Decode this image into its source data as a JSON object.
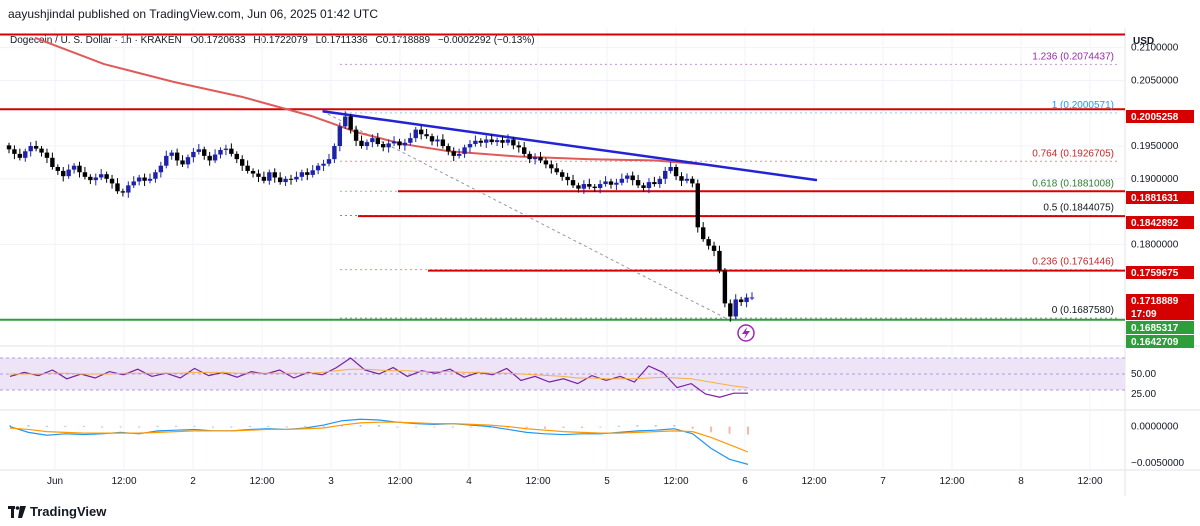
{
  "header": {
    "publisher_line": "aayushjindal published on TradingView.com, Jun 06, 2025 01:42 UTC"
  },
  "legend": {
    "symbol": "Dogecoin / U. S. Dollar · 1h · KRAKEN",
    "open_label": "O",
    "open": "0.1720633",
    "high_label": "H",
    "high": "0.1722079",
    "low_label": "L",
    "low": "0.1711336",
    "close_label": "C",
    "close": "0.1718889",
    "change": "−0.0002292 (−0.13%)"
  },
  "currency": "USD",
  "footer": {
    "brand": "TradingView"
  },
  "colors": {
    "up": "#1e22aa",
    "down": "#000000",
    "ma": "#e05a5a",
    "horizontal": "#d50000",
    "trend": "#2323d6",
    "support": "#2e9e3a",
    "fib_purple": "#9c27b0",
    "fib_blue": "#2196f3",
    "fib_red": "#c62828",
    "fib_green": "#2e7d32",
    "rsi": "#7b1fa2",
    "macd": "#2196f3",
    "signal": "#ff9800"
  },
  "chart_data": [
    {
      "type": "candlestick",
      "title": "Dogecoin / U. S. Dollar · 1h · KRAKEN",
      "ylabel": "USD",
      "ylim": [
        0.1645,
        0.213
      ],
      "x_ticks": [
        "Jun",
        "12:00",
        "2",
        "12:00",
        "3",
        "12:00",
        "4",
        "12:00",
        "5",
        "12:00",
        "6",
        "12:00",
        "7",
        "12:00",
        "8",
        "12:00"
      ],
      "y_ticks": [
        "0.2100000",
        "0.2050000",
        "0.1950000",
        "0.1900000",
        "0.1800000"
      ],
      "price_tags": [
        {
          "value": "0.2005258",
          "color": "#d50000"
        },
        {
          "value": "0.1881631",
          "color": "#d50000"
        },
        {
          "value": "0.1842892",
          "color": "#d50000"
        },
        {
          "value": "0.1759675",
          "color": "#d50000"
        },
        {
          "value": "0.1718889",
          "color": "#d50000"
        },
        {
          "value": "17:09",
          "color": "#d50000"
        },
        {
          "value": "0.1685317",
          "color": "#2e9e3a"
        },
        {
          "value": "0.1642709",
          "color": "#2e9e3a"
        }
      ],
      "fib_levels": [
        {
          "ratio": "1.236",
          "value": "0.2074437",
          "label": "1.236 (0.2074437)",
          "color": "#9c27b0"
        },
        {
          "ratio": "1",
          "value": "0.2000571",
          "label": "1 (0.2000571)",
          "color": "#2196f3"
        },
        {
          "ratio": "0.764",
          "value": "0.1926705",
          "label": "0.764 (0.1926705)",
          "color": "#c62828"
        },
        {
          "ratio": "0.618",
          "value": "0.1881008",
          "label": "0.618 (0.1881008)",
          "color": "#2e7d32"
        },
        {
          "ratio": "0.5",
          "value": "0.1844075",
          "label": "0.5 (0.1844075)",
          "color": "#131722"
        },
        {
          "ratio": "0.236",
          "value": "0.1761446",
          "label": "0.236 (0.1761446)",
          "color": "#c62828"
        },
        {
          "ratio": "0",
          "value": "0.1687580",
          "label": "0 (0.1687580)",
          "color": "#131722"
        }
      ],
      "horizontal_lines": [
        0.212,
        0.2006,
        0.1881,
        0.1843,
        0.176,
        0.1685
      ],
      "trendline": {
        "x": [
          "Jun 3 02:00",
          "Jun 6 16:00"
        ],
        "y": [
          0.2003,
          0.1898
        ]
      },
      "closes": [
        0.1945,
        0.1938,
        0.1932,
        0.1942,
        0.195,
        0.1946,
        0.194,
        0.1932,
        0.1918,
        0.1912,
        0.1904,
        0.1914,
        0.192,
        0.191,
        0.1903,
        0.1898,
        0.1902,
        0.1907,
        0.19,
        0.1893,
        0.1881,
        0.1879,
        0.189,
        0.1896,
        0.1902,
        0.1897,
        0.19,
        0.191,
        0.192,
        0.1935,
        0.194,
        0.1928,
        0.1922,
        0.1933,
        0.1941,
        0.1945,
        0.1935,
        0.1928,
        0.1937,
        0.1944,
        0.1946,
        0.1938,
        0.193,
        0.192,
        0.1912,
        0.1908,
        0.1903,
        0.1897,
        0.191,
        0.1902,
        0.1895,
        0.19,
        0.1899,
        0.1903,
        0.191,
        0.1906,
        0.1913,
        0.192,
        0.1923,
        0.193,
        0.195,
        0.198,
        0.1995,
        0.1975,
        0.1958,
        0.195,
        0.1956,
        0.1962,
        0.1953,
        0.1948,
        0.1954,
        0.1957,
        0.1951,
        0.1955,
        0.1962,
        0.1975,
        0.1968,
        0.1965,
        0.1957,
        0.196,
        0.195,
        0.1942,
        0.1935,
        0.1938,
        0.1948,
        0.1953,
        0.1958,
        0.1955,
        0.196,
        0.1956,
        0.1959,
        0.1955,
        0.196,
        0.1951,
        0.1948,
        0.1938,
        0.193,
        0.1933,
        0.1928,
        0.1922,
        0.1916,
        0.191,
        0.1903,
        0.1898,
        0.189,
        0.1885,
        0.1892,
        0.1888,
        0.1886,
        0.1892,
        0.1896,
        0.1891,
        0.1894,
        0.19,
        0.1905,
        0.1898,
        0.189,
        0.1886,
        0.1895,
        0.1892,
        0.19,
        0.1912,
        0.1918,
        0.1904,
        0.1897,
        0.19,
        0.1893,
        0.1826,
        0.1808,
        0.1798,
        0.179,
        0.176,
        0.171,
        0.169,
        0.1716,
        0.1712,
        0.1719,
        0.1719
      ],
      "ma": [
        {
          "x": "Jun 1 00:00",
          "y": 0.2115
        },
        {
          "x": "Jun 1 06:00",
          "y": 0.2095
        },
        {
          "x": "Jun 1 12:00",
          "y": 0.2075
        },
        {
          "x": "Jun 2 00:00",
          "y": 0.2048
        },
        {
          "x": "Jun 2 12:00",
          "y": 0.2025
        },
        {
          "x": "Jun 3 00:00",
          "y": 0.1996
        },
        {
          "x": "Jun 3 08:00",
          "y": 0.1971
        },
        {
          "x": "Jun 3 16:00",
          "y": 0.1953
        },
        {
          "x": "Jun 4 00:00",
          "y": 0.1942
        },
        {
          "x": "Jun 4 12:00",
          "y": 0.1934
        },
        {
          "x": "Jun 5 00:00",
          "y": 0.193
        },
        {
          "x": "Jun 5 12:00",
          "y": 0.1928
        },
        {
          "x": "Jun 5 20:00",
          "y": 0.1922
        }
      ]
    },
    {
      "type": "line",
      "title": "",
      "name": "rsi-panel",
      "ylim": [
        10,
        80
      ],
      "y_ticks": [
        "50.00",
        "25.00"
      ],
      "band": [
        30,
        70
      ],
      "series": [
        {
          "values": [
            47,
            52,
            48,
            55,
            44,
            50,
            45,
            53,
            49,
            56,
            47,
            51,
            45,
            57,
            48,
            52,
            46,
            53,
            50,
            55,
            45,
            52,
            49,
            58,
            70,
            55,
            50,
            58,
            47,
            54,
            51,
            56,
            46,
            52,
            49,
            57,
            42,
            47,
            40,
            44,
            38,
            48,
            42,
            47,
            40,
            60,
            52,
            33,
            38,
            25,
            21,
            26,
            26
          ]
        },
        {
          "values": [
            50,
            50,
            50,
            51,
            51,
            50,
            50,
            50,
            51,
            51,
            51,
            51,
            51,
            52,
            52,
            52,
            51,
            51,
            51,
            51,
            51,
            51,
            52,
            54,
            56,
            56,
            55,
            54,
            54,
            53,
            53,
            53,
            52,
            52,
            51,
            51,
            50,
            49,
            48,
            47,
            45,
            45,
            44,
            44,
            44,
            45,
            46,
            45,
            44,
            41,
            38,
            35,
            33
          ]
        }
      ]
    },
    {
      "type": "bar",
      "title": "",
      "name": "macd-panel",
      "ylim": [
        -0.0057,
        0.002
      ],
      "y_ticks": [
        "0.0000000",
        "−0.0050000"
      ],
      "series": [
        {
          "values": [
            0.0,
            -0.0008,
            -0.0012,
            -0.001,
            -0.0011,
            -0.001,
            -0.0008,
            -0.001,
            -0.0006,
            -0.0005,
            -0.0004,
            -0.0006,
            -0.0006,
            -0.0004,
            -0.0003,
            -0.0004,
            -0.0002,
            0.0002,
            0.0008,
            0.001,
            0.0009,
            0.0006,
            0.0004,
            0.0003,
            0.0004,
            0.0002,
            0.0,
            -0.0004,
            -0.0008,
            -0.001,
            -0.0011,
            -0.001,
            -0.001,
            -0.0008,
            -0.0006,
            -0.0005,
            -0.0003,
            -0.001,
            -0.003,
            -0.0045,
            -0.0052
          ]
        },
        {
          "values": [
            -0.0002,
            -0.0004,
            -0.0007,
            -0.0008,
            -0.0009,
            -0.0009,
            -0.0009,
            -0.0009,
            -0.0008,
            -0.0007,
            -0.0006,
            -0.0006,
            -0.0006,
            -0.0005,
            -0.0004,
            -0.0004,
            -0.0003,
            -0.0002,
            0.0002,
            0.0005,
            0.0006,
            0.0006,
            0.0005,
            0.0004,
            0.0004,
            0.0003,
            0.0002,
            0.0,
            -0.0003,
            -0.0005,
            -0.0007,
            -0.0008,
            -0.0009,
            -0.0009,
            -0.0008,
            -0.0007,
            -0.0006,
            -0.0007,
            -0.0015,
            -0.0025,
            -0.0035
          ]
        },
        {
          "values": [
            0.0002,
            0.0002,
            0.0001,
            0.0001,
            0.0001,
            0.0,
            0.0,
            0.0,
            0.0001,
            0.0001,
            0.0001,
            0.0,
            0.0,
            0.0001,
            0.0001,
            0.0,
            0.0001,
            0.0001,
            0.0002,
            0.0002,
            0.0002,
            0.0,
            -0.0001,
            -0.0001,
            0.0,
            -0.0001,
            -0.0002,
            -0.0002,
            -0.0002,
            -0.0003,
            -0.0002,
            -0.0002,
            -0.0001,
            0.0001,
            0.0002,
            0.0002,
            0.0002,
            -0.0003,
            -0.0008,
            -0.001,
            -0.0011
          ]
        }
      ]
    }
  ]
}
